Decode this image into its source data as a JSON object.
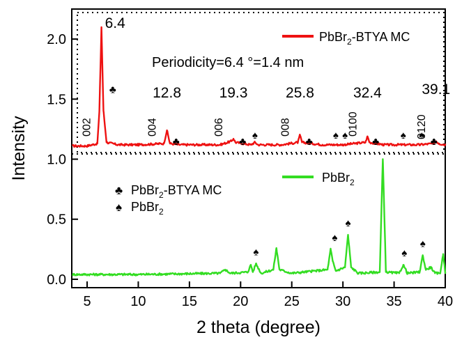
{
  "chart_data": {
    "type": "line",
    "xlabel": "2 theta (degree)",
    "ylabel": "Intensity",
    "xlim": [
      3.5,
      40
    ],
    "ylim": [
      -0.07,
      2.25
    ],
    "x_ticks": [
      5,
      10,
      15,
      20,
      25,
      30,
      35,
      40
    ],
    "y_ticks": [
      0.0,
      0.5,
      1.0,
      1.5,
      2.0
    ],
    "grid": false,
    "annotation": "Periodicity=6.4 °=1.4 nm",
    "series": [
      {
        "name": "PbBr2-BTYA MC",
        "name_main": "PbBr",
        "name_sub": "2",
        "name_tail": "-BTYA MC",
        "color": "#ee1111",
        "baseline": 1.11,
        "x": [
          3.6,
          5.0,
          6.0,
          6.2,
          6.4,
          6.6,
          6.9,
          8.0,
          10.0,
          12.5,
          12.8,
          13.1,
          14.0,
          16.0,
          18.0,
          19.1,
          19.3,
          19.5,
          21.0,
          21.4,
          21.7,
          24.0,
          25.6,
          25.8,
          26.0,
          28.0,
          30.0,
          32.2,
          32.4,
          32.6,
          34.0,
          36.0,
          37.5,
          38.8,
          39.1,
          39.4,
          40.0
        ],
        "y": [
          1.11,
          1.11,
          1.13,
          1.4,
          2.1,
          1.4,
          1.14,
          1.12,
          1.12,
          1.13,
          1.24,
          1.13,
          1.12,
          1.12,
          1.12,
          1.15,
          1.17,
          1.14,
          1.12,
          1.14,
          1.12,
          1.12,
          1.14,
          1.2,
          1.14,
          1.12,
          1.12,
          1.14,
          1.19,
          1.14,
          1.12,
          1.12,
          1.12,
          1.13,
          1.15,
          1.13,
          1.12
        ]
      },
      {
        "name": "PbBr2",
        "name_main": "PbBr",
        "name_sub": "2",
        "name_tail": "",
        "color": "#33dd22",
        "baseline": 0.04,
        "x": [
          3.6,
          10.0,
          14.0,
          18.0,
          18.5,
          19.0,
          20.7,
          21.0,
          21.2,
          21.5,
          22.0,
          23.2,
          23.5,
          23.8,
          25.0,
          28.5,
          28.8,
          29.0,
          29.3,
          30.2,
          30.5,
          30.8,
          31.5,
          33.6,
          33.9,
          34.2,
          35.5,
          35.9,
          36.3,
          37.5,
          37.8,
          38.1,
          38.6,
          39.0,
          39.5,
          39.8,
          40.0
        ],
        "y": [
          0.04,
          0.04,
          0.045,
          0.05,
          0.08,
          0.05,
          0.06,
          0.12,
          0.06,
          0.13,
          0.05,
          0.08,
          0.26,
          0.08,
          0.05,
          0.08,
          0.25,
          0.15,
          0.07,
          0.1,
          0.37,
          0.1,
          0.05,
          0.06,
          1.0,
          0.06,
          0.05,
          0.12,
          0.05,
          0.06,
          0.2,
          0.08,
          0.1,
          0.05,
          0.05,
          0.21,
          0.06
        ]
      }
    ],
    "peak_labels": [
      {
        "x": 6.4,
        "y": 2.1,
        "text": "6.4"
      },
      {
        "x": 12.8,
        "y": 1.24,
        "text": "12.8"
      },
      {
        "x": 19.3,
        "y": 1.17,
        "text": "19.3"
      },
      {
        "x": 25.8,
        "y": 1.2,
        "text": "25.8"
      },
      {
        "x": 32.4,
        "y": 1.19,
        "text": "32.4"
      },
      {
        "x": 39.1,
        "y": 1.15,
        "text": "39.1"
      }
    ],
    "hkl_labels": [
      {
        "x": 6.4,
        "text": "002"
      },
      {
        "x": 12.8,
        "text": "004"
      },
      {
        "x": 19.3,
        "text": "006"
      },
      {
        "x": 25.8,
        "text": "008"
      },
      {
        "x": 32.4,
        "text": "0100"
      },
      {
        "x": 39.1,
        "text": "0120"
      }
    ],
    "markers_club": [
      {
        "x": 7.5,
        "y": 1.55
      },
      {
        "x": 13.7,
        "y": 1.12
      },
      {
        "x": 20.2,
        "y": 1.12
      },
      {
        "x": 26.7,
        "y": 1.12
      },
      {
        "x": 33.2,
        "y": 1.12
      },
      {
        "x": 38.9,
        "y": 1.12
      }
    ],
    "markers_spade": [
      {
        "x": 21.4,
        "y": 1.17
      },
      {
        "x": 29.3,
        "y": 1.17
      },
      {
        "x": 30.2,
        "y": 1.17
      },
      {
        "x": 35.9,
        "y": 1.17
      },
      {
        "x": 37.7,
        "y": 1.17
      },
      {
        "x": 21.5,
        "y": 0.2
      },
      {
        "x": 29.2,
        "y": 0.32
      },
      {
        "x": 30.5,
        "y": 0.44
      },
      {
        "x": 36.0,
        "y": 0.19
      },
      {
        "x": 37.8,
        "y": 0.27
      }
    ],
    "marker_legend": [
      {
        "symbol": "club",
        "main": "PbBr",
        "sub": "2",
        "tail": "-BTYA MC"
      },
      {
        "symbol": "spade",
        "main": "PbBr",
        "sub": "2",
        "tail": ""
      }
    ],
    "colors": {
      "club": "#ee66ee",
      "spade": "#000000",
      "frame": "#000000"
    }
  }
}
